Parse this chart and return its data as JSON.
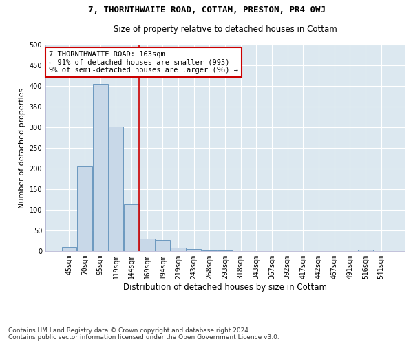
{
  "title_line1": "7, THORNTHWAITE ROAD, COTTAM, PRESTON, PR4 0WJ",
  "title_line2": "Size of property relative to detached houses in Cottam",
  "xlabel": "Distribution of detached houses by size in Cottam",
  "ylabel": "Number of detached properties",
  "footnote": "Contains HM Land Registry data © Crown copyright and database right 2024.\nContains public sector information licensed under the Open Government Licence v3.0.",
  "bar_labels": [
    "45sqm",
    "70sqm",
    "95sqm",
    "119sqm",
    "144sqm",
    "169sqm",
    "194sqm",
    "219sqm",
    "243sqm",
    "268sqm",
    "293sqm",
    "318sqm",
    "343sqm",
    "367sqm",
    "392sqm",
    "417sqm",
    "442sqm",
    "467sqm",
    "491sqm",
    "516sqm",
    "541sqm"
  ],
  "bar_values": [
    10,
    205,
    405,
    302,
    113,
    30,
    27,
    8,
    5,
    2,
    1,
    0,
    0,
    0,
    0,
    0,
    0,
    0,
    0,
    4,
    0
  ],
  "bar_color": "#c8d8e8",
  "bar_edge_color": "#5b8db8",
  "vline_x_index": 5,
  "vline_color": "#cc0000",
  "annotation_text": "7 THORNTHWAITE ROAD: 163sqm\n← 91% of detached houses are smaller (995)\n9% of semi-detached houses are larger (96) →",
  "annotation_box_color": "#ffffff",
  "annotation_box_edge_color": "#cc0000",
  "ylim": [
    0,
    500
  ],
  "yticks": [
    0,
    50,
    100,
    150,
    200,
    250,
    300,
    350,
    400,
    450,
    500
  ],
  "plot_bg_color": "#dce8f0",
  "grid_color": "#ffffff",
  "title1_fontsize": 9,
  "title2_fontsize": 8.5,
  "xlabel_fontsize": 8.5,
  "ylabel_fontsize": 8,
  "tick_fontsize": 7,
  "annotation_fontsize": 7.5,
  "footnote_fontsize": 6.5
}
